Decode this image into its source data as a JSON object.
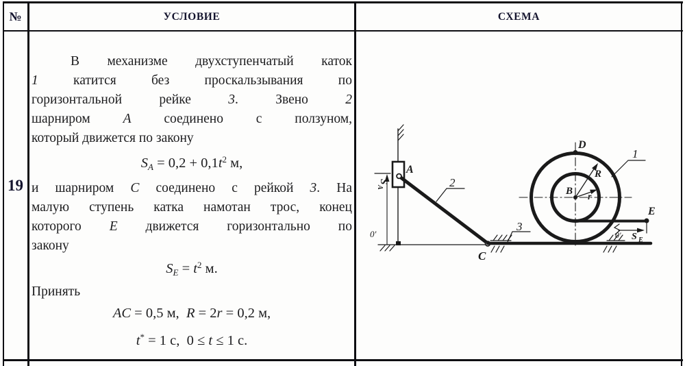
{
  "header": {
    "col_num": "№",
    "col_condition": "УСЛОВИЕ",
    "col_schema": "СХЕМА"
  },
  "row_number": "19",
  "condition": {
    "lines": [
      {
        "style": "bj1",
        "segs": [
          {
            "t": "В механизме двухступенчатый каток"
          }
        ]
      },
      {
        "style": "bj",
        "segs": [
          {
            "t": "1",
            "i": true
          },
          {
            "t": " катится без проскальзывания по"
          }
        ]
      },
      {
        "style": "bj",
        "segs": [
          {
            "t": "горизонтальной рейке "
          },
          {
            "t": "3",
            "i": true
          },
          {
            "t": ". Звено "
          },
          {
            "t": "2",
            "i": true
          }
        ]
      },
      {
        "style": "bj",
        "segs": [
          {
            "t": "шарниром "
          },
          {
            "t": "A",
            "i": true
          },
          {
            "t": " соединено с ползуном,"
          }
        ]
      },
      {
        "style": "b",
        "segs": [
          {
            "t": "который движется по закону"
          }
        ]
      },
      {
        "style": "f1",
        "segs": [
          {
            "t": "S",
            "i": true
          },
          {
            "t": "A",
            "i": true,
            "sub": true
          },
          {
            "t": " = 0,2 + 0,1"
          },
          {
            "t": "t",
            "i": true
          },
          {
            "t": "2",
            "sup": true
          },
          {
            "t": " м,"
          }
        ]
      },
      {
        "style": "bj",
        "segs": [
          {
            "t": "и шарниром "
          },
          {
            "t": "C",
            "i": true
          },
          {
            "t": " соединено с рейкой "
          },
          {
            "t": "3",
            "i": true
          },
          {
            "t": ". На"
          }
        ]
      },
      {
        "style": "bj",
        "segs": [
          {
            "t": "малую ступень катка намотан трос, конец"
          }
        ]
      },
      {
        "style": "bj",
        "segs": [
          {
            "t": "которого "
          },
          {
            "t": "E",
            "i": true
          },
          {
            "t": " движется горизонтально по"
          }
        ]
      },
      {
        "style": "b",
        "segs": [
          {
            "t": "закону"
          }
        ]
      },
      {
        "style": "f2",
        "segs": [
          {
            "t": "S",
            "i": true
          },
          {
            "t": "E",
            "i": true,
            "sub": true
          },
          {
            "t": " = "
          },
          {
            "t": "t",
            "i": true
          },
          {
            "t": "2",
            "sup": true
          },
          {
            "t": " м."
          }
        ]
      },
      {
        "style": "b",
        "segs": [
          {
            "t": "Принять"
          }
        ]
      },
      {
        "style": "f3",
        "segs": [
          {
            "t": "AC",
            "i": true
          },
          {
            "t": " = 0,5 м,  "
          },
          {
            "t": "R",
            "i": true
          },
          {
            "t": " = 2"
          },
          {
            "t": "r",
            "i": true
          },
          {
            "t": " = 0,2 м,"
          }
        ]
      },
      {
        "style": "f4",
        "segs": [
          {
            "t": "t",
            "i": true
          },
          {
            "t": "*",
            "sup": true
          },
          {
            "t": " = 1 с,  0 ≤ "
          },
          {
            "t": "t",
            "i": true
          },
          {
            "t": " ≤ 1 с."
          }
        ]
      }
    ]
  },
  "schema": {
    "labels": {
      "A": "A",
      "B": "B",
      "C": "C",
      "D": "D",
      "E": "E",
      "link1": "1",
      "link2": "2",
      "rail3": "3",
      "R": "R",
      "r": "r",
      "S_A_main": "S",
      "S_A_sub": "A",
      "S_E_main": "S",
      "S_E_sub": "E",
      "origin_left": "0′",
      "origin_right": "0′"
    },
    "ink_color": "#1a1a1a"
  }
}
